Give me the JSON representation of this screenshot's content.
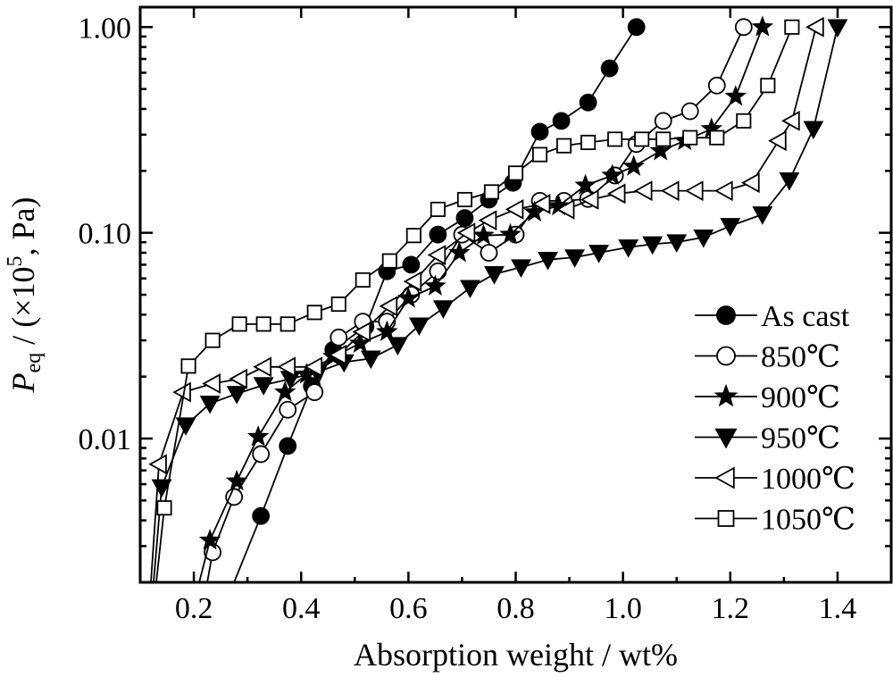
{
  "chart_data": {
    "type": "line",
    "xlabel": "Absorption weight / wt%",
    "ylabel": {
      "main": "P",
      "subscript": "eq",
      "rest_before_sup": " / (×10",
      "superscript": "5",
      "rest_after_sup": ", Pa)"
    },
    "y_scale": "log",
    "xlim": [
      0.1,
      1.5
    ],
    "ylim": [
      0.002,
      1.25
    ],
    "x_ticks": [
      0.2,
      0.4,
      0.6,
      0.8,
      1.0,
      1.2,
      1.4
    ],
    "x_tick_labels": [
      "0.2",
      "0.4",
      "0.6",
      "0.8",
      "1.0",
      "1.2",
      "1.4"
    ],
    "y_ticks": [
      0.01,
      0.1,
      1.0
    ],
    "y_tick_labels": [
      "0.01",
      "0.10",
      "1.00"
    ],
    "grid": false,
    "legend_position": "right",
    "series": [
      {
        "name": "As cast",
        "marker": "filled-circle",
        "x": [
          0.275,
          0.325,
          0.375,
          0.42,
          0.46,
          0.52,
          0.56,
          0.605,
          0.655,
          0.705,
          0.75,
          0.795,
          0.845,
          0.885,
          0.935,
          0.975,
          1.025
        ],
        "y": [
          0.002,
          0.0042,
          0.0092,
          0.018,
          0.027,
          0.035,
          0.065,
          0.07,
          0.098,
          0.118,
          0.145,
          0.175,
          0.31,
          0.35,
          0.43,
          0.63,
          1.0
        ]
      },
      {
        "name": "850℃",
        "marker": "open-circle",
        "x": [
          0.225,
          0.235,
          0.275,
          0.325,
          0.375,
          0.425,
          0.47,
          0.515,
          0.56,
          0.605,
          0.655,
          0.7,
          0.75,
          0.8,
          0.845,
          0.89,
          0.935,
          0.985,
          1.025,
          1.075,
          1.125,
          1.175,
          1.225
        ],
        "y": [
          0.002,
          0.0028,
          0.0052,
          0.0084,
          0.0138,
          0.0168,
          0.031,
          0.037,
          0.037,
          0.05,
          0.065,
          0.098,
          0.08,
          0.098,
          0.143,
          0.143,
          0.146,
          0.19,
          0.27,
          0.35,
          0.39,
          0.52,
          1.0
        ]
      },
      {
        "name": "900℃",
        "marker": "filled-star",
        "x": [
          0.21,
          0.23,
          0.28,
          0.32,
          0.37,
          0.41,
          0.46,
          0.51,
          0.56,
          0.6,
          0.65,
          0.695,
          0.74,
          0.79,
          0.835,
          0.88,
          0.93,
          0.98,
          1.02,
          1.07,
          1.115,
          1.165,
          1.21,
          1.26
        ],
        "y": [
          0.002,
          0.0032,
          0.0062,
          0.0102,
          0.0168,
          0.0205,
          0.025,
          0.029,
          0.033,
          0.048,
          0.055,
          0.08,
          0.097,
          0.098,
          0.126,
          0.135,
          0.17,
          0.19,
          0.21,
          0.25,
          0.28,
          0.32,
          0.46,
          1.0
        ]
      },
      {
        "name": "950℃",
        "marker": "filled-triangle-down",
        "x": [
          0.125,
          0.14,
          0.185,
          0.23,
          0.28,
          0.33,
          0.38,
          0.43,
          0.48,
          0.53,
          0.58,
          0.62,
          0.665,
          0.715,
          0.76,
          0.81,
          0.86,
          0.91,
          0.955,
          1.01,
          1.055,
          1.1,
          1.15,
          1.2,
          1.26,
          1.31,
          1.355,
          1.4
        ],
        "y": [
          0.002,
          0.0058,
          0.0116,
          0.0148,
          0.0165,
          0.0182,
          0.0195,
          0.021,
          0.0235,
          0.0245,
          0.0285,
          0.0355,
          0.043,
          0.054,
          0.063,
          0.068,
          0.074,
          0.076,
          0.08,
          0.085,
          0.088,
          0.09,
          0.095,
          0.108,
          0.123,
          0.18,
          0.32,
          1.0
        ]
      },
      {
        "name": "1000℃",
        "marker": "open-triangle-left",
        "x": [
          0.12,
          0.135,
          0.18,
          0.235,
          0.285,
          0.33,
          0.375,
          0.425,
          0.47,
          0.515,
          0.565,
          0.61,
          0.655,
          0.71,
          0.75,
          0.8,
          0.85,
          0.895,
          0.94,
          0.99,
          1.04,
          1.09,
          1.135,
          1.19,
          1.24,
          1.29,
          1.315,
          1.36
        ],
        "y": [
          0.002,
          0.0075,
          0.0168,
          0.0185,
          0.0195,
          0.0223,
          0.0223,
          0.0223,
          0.0255,
          0.033,
          0.044,
          0.058,
          0.078,
          0.1,
          0.115,
          0.13,
          0.138,
          0.13,
          0.145,
          0.155,
          0.16,
          0.16,
          0.16,
          0.16,
          0.175,
          0.28,
          0.35,
          1.0
        ]
      },
      {
        "name": "1050℃",
        "marker": "open-square",
        "x": [
          0.13,
          0.145,
          0.19,
          0.235,
          0.285,
          0.33,
          0.375,
          0.425,
          0.47,
          0.515,
          0.565,
          0.61,
          0.655,
          0.705,
          0.755,
          0.8,
          0.845,
          0.89,
          0.935,
          0.985,
          1.035,
          1.075,
          1.125,
          1.175,
          1.225,
          1.27,
          1.315
        ],
        "y": [
          0.002,
          0.0046,
          0.0225,
          0.03,
          0.036,
          0.036,
          0.036,
          0.041,
          0.045,
          0.059,
          0.073,
          0.097,
          0.13,
          0.145,
          0.158,
          0.195,
          0.24,
          0.265,
          0.275,
          0.285,
          0.285,
          0.285,
          0.29,
          0.29,
          0.35,
          0.52,
          1.0
        ]
      }
    ]
  }
}
